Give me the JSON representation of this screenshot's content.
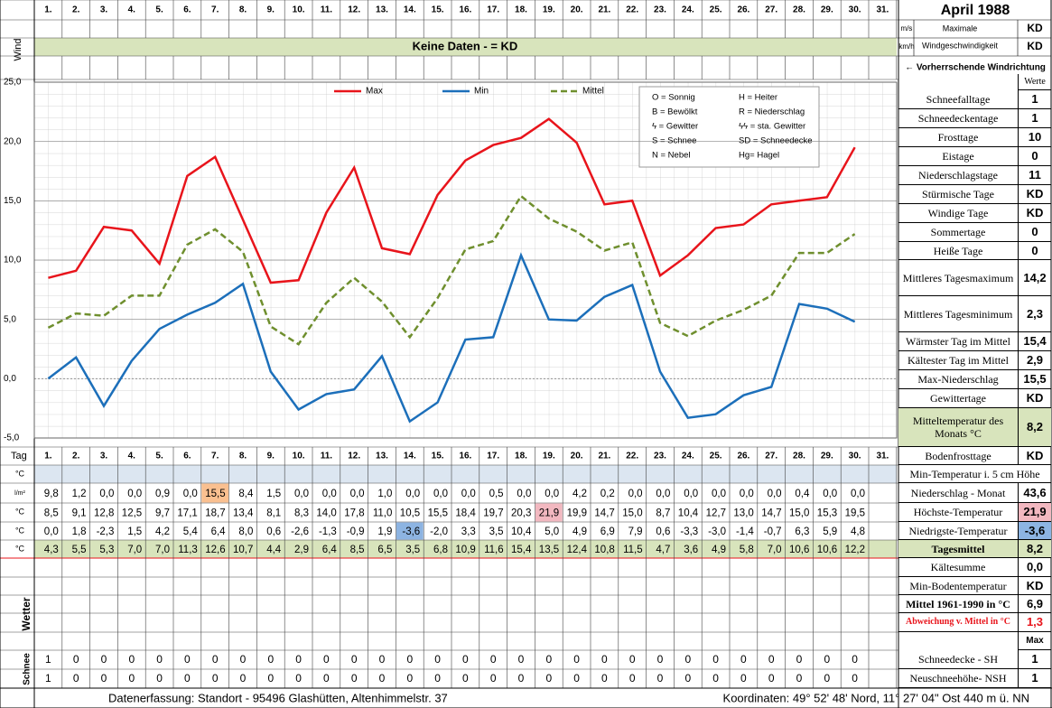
{
  "header": {
    "title": "April 1988",
    "wind_label": "Wind",
    "no_data": "Keine Daten -  = KD",
    "unit_ms": "m/s",
    "unit_kmh": "km/h",
    "wind_max_1": "Maximale",
    "wind_max_2": "Windgeschwindigkeit",
    "wind_ms": "KD",
    "wind_kmh": "KD",
    "wind_dir": "← Vorherrschende Windrichtung"
  },
  "chart_data": {
    "type": "line",
    "categories": [
      "1.",
      "2.",
      "3.",
      "4.",
      "5.",
      "6.",
      "7.",
      "8.",
      "9.",
      "10.",
      "11.",
      "12.",
      "13.",
      "14.",
      "15.",
      "16.",
      "17.",
      "18.",
      "19.",
      "20.",
      "21.",
      "22.",
      "23.",
      "24.",
      "25.",
      "26.",
      "27.",
      "28.",
      "29.",
      "30.",
      "31."
    ],
    "series": [
      {
        "name": "Max",
        "color": "#e8141b",
        "values": [
          8.5,
          9.1,
          12.8,
          12.5,
          9.7,
          17.1,
          18.7,
          13.4,
          8.1,
          8.3,
          14.0,
          17.8,
          11.0,
          10.5,
          15.5,
          18.4,
          19.7,
          20.3,
          21.9,
          19.9,
          14.7,
          15.0,
          8.7,
          10.4,
          12.7,
          13.0,
          14.7,
          15.0,
          15.3,
          19.5,
          null
        ],
        "value_labels": [
          "8,5",
          "9,1",
          "12,8",
          "12,5",
          "9,7",
          "17,1",
          "18,7",
          "13,4",
          "8,1",
          "8,3",
          "14,0",
          "17,8",
          "11,0",
          "10,5",
          "15,5",
          "18,4",
          "19,7",
          "20,3",
          "21,9",
          "19,9",
          "14,7",
          "15,0",
          "8,7",
          "10,4",
          "12,7",
          "13,0",
          "14,7",
          "15,0",
          "15,3",
          "19,5",
          null
        ]
      },
      {
        "name": "Min",
        "color": "#1c6fba",
        "values": [
          0.0,
          1.8,
          -2.3,
          1.5,
          4.2,
          5.4,
          6.4,
          8.0,
          0.6,
          -2.6,
          -1.3,
          -0.9,
          1.9,
          -3.6,
          -2.0,
          3.3,
          3.5,
          10.4,
          5.0,
          4.9,
          6.9,
          7.9,
          0.6,
          -3.3,
          -3.0,
          -1.4,
          -0.7,
          6.3,
          5.9,
          4.8,
          null
        ],
        "value_labels": [
          "0,0",
          "1,8",
          "-2,3",
          "1,5",
          "4,2",
          "5,4",
          "6,4",
          "8,0",
          "0,6",
          "-2,6",
          "-1,3",
          "-0,9",
          "1,9",
          "-3,6",
          "-2,0",
          "3,3",
          "3,5",
          "10,4",
          "5,0",
          "4,9",
          "6,9",
          "7,9",
          "0,6",
          "-3,3",
          "-3,0",
          "-1,4",
          "-0,7",
          "6,3",
          "5,9",
          "4,8",
          null
        ]
      },
      {
        "name": "Mittel",
        "color": "#6f8f2e",
        "dashed": true,
        "values": [
          4.3,
          5.5,
          5.3,
          7.0,
          7.0,
          11.3,
          12.6,
          10.7,
          4.4,
          2.9,
          6.4,
          8.5,
          6.5,
          3.5,
          6.8,
          10.9,
          11.6,
          15.4,
          13.5,
          12.4,
          10.8,
          11.5,
          4.7,
          3.6,
          4.9,
          5.8,
          7.0,
          10.6,
          10.6,
          12.2,
          null
        ],
        "value_labels": [
          "4,3",
          "5,5",
          "5,3",
          "7,0",
          "7,0",
          "11,3",
          "12,6",
          "10,7",
          "4,4",
          "2,9",
          "6,4",
          "8,5",
          "6,5",
          "3,5",
          "6,8",
          "10,9",
          "11,6",
          "15,4",
          "13,5",
          "12,4",
          "10,8",
          "11,5",
          "4,7",
          "3,6",
          "4,9",
          "5,8",
          "7,0",
          "10,6",
          "10,6",
          "12,2",
          null
        ]
      }
    ],
    "ylim": [
      -5,
      25
    ],
    "yticks": [
      {
        "value": -5,
        "label": "-5,0"
      },
      {
        "value": 0,
        "label": "0,0"
      },
      {
        "value": 5,
        "label": "5,0"
      },
      {
        "value": 10,
        "label": "10,0"
      },
      {
        "value": 15,
        "label": "15,0"
      },
      {
        "value": 20,
        "label": "20,0"
      },
      {
        "value": 25,
        "label": "25,0"
      }
    ],
    "grid": true,
    "symbols": [
      "O = Sonnig",
      "H = Heiter",
      "B = Bewölkt",
      "R = Niederschlag",
      "ϟ = Gewitter",
      "ϟϟ = sta. Gewitter",
      "S = Schnee",
      "SD = Schneedecke",
      "N = Nebel",
      "Hg= Hagel"
    ]
  },
  "table": {
    "day_label": "Tag",
    "unit_c": "°C",
    "unit_rain": "l/m²",
    "weather_label": "Wetter",
    "snow_label": "Schnee",
    "precipitation": [
      "9,8",
      "1,2",
      "0,0",
      "0,0",
      "0,9",
      "0,0",
      "15,5",
      "8,4",
      "1,5",
      "0,0",
      "0,0",
      "0,0",
      "1,0",
      "0,0",
      "0,0",
      "0,0",
      "0,5",
      "0,0",
      "0,0",
      "4,2",
      "0,2",
      "0,0",
      "0,0",
      "0,0",
      "0,0",
      "0,0",
      "0,0",
      "0,4",
      "0,0",
      "0,0",
      null
    ],
    "snow_depth": [
      "1",
      "0",
      "0",
      "0",
      "0",
      "0",
      "0",
      "0",
      "0",
      "0",
      "0",
      "0",
      "0",
      "0",
      "0",
      "0",
      "0",
      "0",
      "0",
      "0",
      "0",
      "0",
      "0",
      "0",
      "0",
      "0",
      "0",
      "0",
      "0",
      "0",
      null
    ],
    "new_snow": [
      "1",
      "0",
      "0",
      "0",
      "0",
      "0",
      "0",
      "0",
      "0",
      "0",
      "0",
      "0",
      "0",
      "0",
      "0",
      "0",
      "0",
      "0",
      "0",
      "0",
      "0",
      "0",
      "0",
      "0",
      "0",
      "0",
      "0",
      "0",
      "0",
      "0",
      null
    ]
  },
  "right_panel": {
    "values_header": "Werte",
    "stats": [
      {
        "label": "Schneefalltage",
        "value": "1"
      },
      {
        "label": "Schneedeckentage",
        "value": "1"
      },
      {
        "label": "Frosttage",
        "value": "10"
      },
      {
        "label": "Eistage",
        "value": "0"
      },
      {
        "label": "Niederschlagstage",
        "value": "11"
      },
      {
        "label": "Stürmische Tage",
        "value": "KD"
      },
      {
        "label": "Windige Tage",
        "value": "KD"
      },
      {
        "label": "Sommertage",
        "value": "0"
      },
      {
        "label": "Heiße Tage",
        "value": "0"
      },
      {
        "label": "Mittleres Tagesmaximum",
        "value": "14,2"
      },
      {
        "label": "Mittleres Tagesminimum",
        "value": "2,3"
      },
      {
        "label": "Wärmster Tag im Mittel",
        "value": "15,4"
      },
      {
        "label": "Kältester Tag im Mittel",
        "value": "2,9"
      },
      {
        "label": "Max-Niederschlag",
        "value": "15,5"
      },
      {
        "label": "Gewittertage",
        "value": "KD"
      },
      {
        "label": "Mitteltemperatur des Monats °C",
        "value": "8,2"
      },
      {
        "label": "Bodenfrosttage",
        "value": "KD"
      },
      {
        "label": "Min-Temperatur i. 5 cm Höhe"
      },
      {
        "label": "Niederschlag - Monat",
        "value": "43,6"
      },
      {
        "label": "Höchste-Temperatur",
        "value": "21,9"
      },
      {
        "label": "Niedrigste-Temperatur",
        "value": "-3,6"
      },
      {
        "label": "Tagesmittel",
        "value": "8,2"
      },
      {
        "label": "Kältesumme",
        "value": "0,0"
      },
      {
        "label": "Min-Bodentemperatur",
        "value": "KD"
      },
      {
        "label": "Mittel 1961-1990 in °C",
        "value": "6,9"
      },
      {
        "label": "Abweichung v. Mittel in °C",
        "value": "1,3"
      },
      {
        "value": "Max"
      },
      {
        "label": "Schneedecke -  SH",
        "value": "1"
      },
      {
        "label": "Neuschneehöhe- NSH",
        "value": "1"
      }
    ]
  },
  "footer": {
    "left": "Datenerfassung:  Standort -   95496  Glashütten, Altenhimmelstr. 37",
    "right": "Koordinaten:  49° 52' 48' Nord,  11° 27' 04\" Ost   440 m ü. NN"
  }
}
